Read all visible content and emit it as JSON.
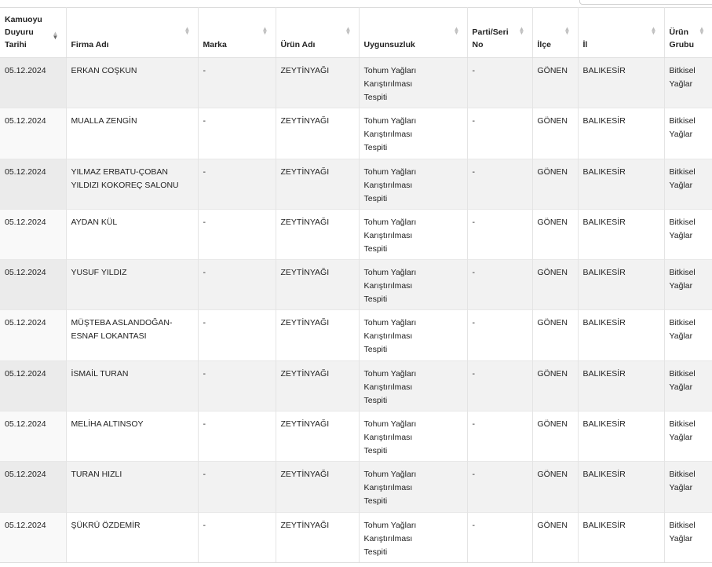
{
  "table": {
    "headers": [
      {
        "key": "tarih",
        "label": "Kamuoyu Duyuru Tarihi",
        "lines": [
          "Kamuoyu",
          "Duyuru",
          "Tarihi"
        ],
        "sorted": "desc"
      },
      {
        "key": "firma",
        "label": "Firma Adı",
        "lines": [
          "Firma Adı"
        ]
      },
      {
        "key": "marka",
        "label": "Marka",
        "lines": [
          "Marka"
        ]
      },
      {
        "key": "urun",
        "label": "Ürün Adı",
        "lines": [
          "Ürün Adı"
        ]
      },
      {
        "key": "uygun",
        "label": "Uygunsuzluk",
        "lines": [
          "Uygunsuzluk"
        ]
      },
      {
        "key": "parti",
        "label": "Parti/Seri No",
        "lines": [
          "Parti/Seri",
          "No"
        ]
      },
      {
        "key": "ilce",
        "label": "İlçe",
        "lines": [
          "İlçe"
        ]
      },
      {
        "key": "il",
        "label": "İl",
        "lines": [
          "İl"
        ]
      },
      {
        "key": "grup",
        "label": "Ürün Grubu",
        "lines": [
          "Ürün",
          "Grubu"
        ]
      }
    ],
    "rows": [
      {
        "tarih": "05.12.2024",
        "firma": [
          "ERKAN COŞKUN"
        ],
        "marka": "-",
        "urun": "ZEYTİNYAĞI",
        "uygun": [
          "Tohum Yağları",
          "Karıştırılması",
          "Tespiti"
        ],
        "parti": "-",
        "ilce": "GÖNEN",
        "il": "BALIKESİR",
        "grup": [
          "Bitkisel",
          "Yağlar"
        ]
      },
      {
        "tarih": "05.12.2024",
        "firma": [
          "MUALLA ZENGİN"
        ],
        "marka": "-",
        "urun": "ZEYTİNYAĞI",
        "uygun": [
          "Tohum Yağları",
          "Karıştırılması",
          "Tespiti"
        ],
        "parti": "-",
        "ilce": "GÖNEN",
        "il": "BALIKESİR",
        "grup": [
          "Bitkisel",
          "Yağlar"
        ]
      },
      {
        "tarih": "05.12.2024",
        "firma": [
          "YILMAZ ERBATU-ÇOBAN",
          "YILDIZI KOKOREÇ SALONU"
        ],
        "marka": "-",
        "urun": "ZEYTİNYAĞI",
        "uygun": [
          "Tohum Yağları",
          "Karıştırılması",
          "Tespiti"
        ],
        "parti": "-",
        "ilce": "GÖNEN",
        "il": "BALIKESİR",
        "grup": [
          "Bitkisel",
          "Yağlar"
        ]
      },
      {
        "tarih": "05.12.2024",
        "firma": [
          "AYDAN KÜL"
        ],
        "marka": "-",
        "urun": "ZEYTİNYAĞI",
        "uygun": [
          "Tohum Yağları",
          "Karıştırılması",
          "Tespiti"
        ],
        "parti": "-",
        "ilce": "GÖNEN",
        "il": "BALIKESİR",
        "grup": [
          "Bitkisel",
          "Yağlar"
        ]
      },
      {
        "tarih": "05.12.2024",
        "firma": [
          "YUSUF YILDIZ"
        ],
        "marka": "-",
        "urun": "ZEYTİNYAĞI",
        "uygun": [
          "Tohum Yağları",
          "Karıştırılması",
          "Tespiti"
        ],
        "parti": "-",
        "ilce": "GÖNEN",
        "il": "BALIKESİR",
        "grup": [
          "Bitkisel",
          "Yağlar"
        ]
      },
      {
        "tarih": "05.12.2024",
        "firma": [
          "MÜŞTEBA ASLANDOĞAN-",
          "ESNAF LOKANTASI"
        ],
        "marka": "-",
        "urun": "ZEYTİNYAĞI",
        "uygun": [
          "Tohum Yağları",
          "Karıştırılması",
          "Tespiti"
        ],
        "parti": "-",
        "ilce": "GÖNEN",
        "il": "BALIKESİR",
        "grup": [
          "Bitkisel",
          "Yağlar"
        ]
      },
      {
        "tarih": "05.12.2024",
        "firma": [
          "İSMAİL TURAN"
        ],
        "marka": "-",
        "urun": "ZEYTİNYAĞI",
        "uygun": [
          "Tohum Yağları",
          "Karıştırılması",
          "Tespiti"
        ],
        "parti": "-",
        "ilce": "GÖNEN",
        "il": "BALIKESİR",
        "grup": [
          "Bitkisel",
          "Yağlar"
        ]
      },
      {
        "tarih": "05.12.2024",
        "firma": [
          "MELİHA ALTINSOY"
        ],
        "marka": "-",
        "urun": "ZEYTİNYAĞI",
        "uygun": [
          "Tohum Yağları",
          "Karıştırılması",
          "Tespiti"
        ],
        "parti": "-",
        "ilce": "GÖNEN",
        "il": "BALIKESİR",
        "grup": [
          "Bitkisel",
          "Yağlar"
        ]
      },
      {
        "tarih": "05.12.2024",
        "firma": [
          "TURAN HIZLI"
        ],
        "marka": "-",
        "urun": "ZEYTİNYAĞI",
        "uygun": [
          "Tohum Yağları",
          "Karıştırılması",
          "Tespiti"
        ],
        "parti": "-",
        "ilce": "GÖNEN",
        "il": "BALIKESİR",
        "grup": [
          "Bitkisel",
          "Yağlar"
        ]
      },
      {
        "tarih": "05.12.2024",
        "firma": [
          "ŞÜKRÜ ÖZDEMİR"
        ],
        "marka": "-",
        "urun": "ZEYTİNYAĞI",
        "uygun": [
          "Tohum Yağları",
          "Karıştırılması",
          "Tespiti"
        ],
        "parti": "-",
        "ilce": "GÖNEN",
        "il": "BALIKESİR",
        "grup": [
          "Bitkisel",
          "Yağlar"
        ]
      }
    ]
  },
  "icons": {
    "sort": "sort-arrows-icon"
  }
}
